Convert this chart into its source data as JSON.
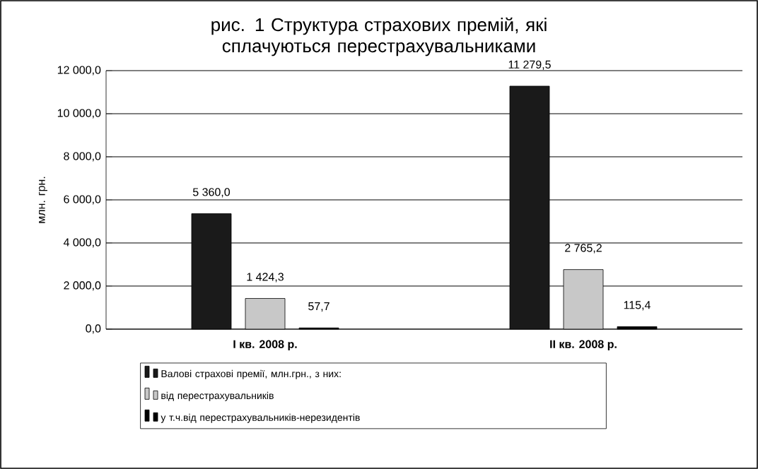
{
  "chart_data": {
    "type": "bar",
    "title": "рис. 1 Структура страхових премій, які сплачуються перестрахувальниками",
    "ylabel": "млн. грн.",
    "categories": [
      "I кв. 2008 р.",
      "II кв. 2008 р."
    ],
    "series": [
      {
        "name": "Валові страхові премії, млн.грн., з них:",
        "color": "#1a1a1a",
        "values": [
          5360.0,
          11279.5
        ],
        "value_labels": [
          "5 360,0",
          "11 279,5"
        ]
      },
      {
        "name": "від перестрахувальників",
        "color": "#c8c8c8",
        "values": [
          1424.3,
          2765.2
        ],
        "value_labels": [
          "1 424,3",
          "2 765,2"
        ]
      },
      {
        "name": "у т.ч.від перестрахувальників-нерезидентів",
        "color": "#000000",
        "values": [
          57.7,
          115.4
        ],
        "value_labels": [
          "57,7",
          "115,4"
        ]
      }
    ],
    "ylim": [
      0,
      12000
    ],
    "yticks": [
      {
        "value": 0,
        "label": "0,0"
      },
      {
        "value": 2000,
        "label": "2 000,0"
      },
      {
        "value": 4000,
        "label": "4 000,0"
      },
      {
        "value": 6000,
        "label": "6 000,0"
      },
      {
        "value": 8000,
        "label": "8 000,0"
      },
      {
        "value": 10000,
        "label": "10 000,0"
      },
      {
        "value": 12000,
        "label": "12 000,0"
      }
    ],
    "grid": "y",
    "legend": "bottom"
  }
}
